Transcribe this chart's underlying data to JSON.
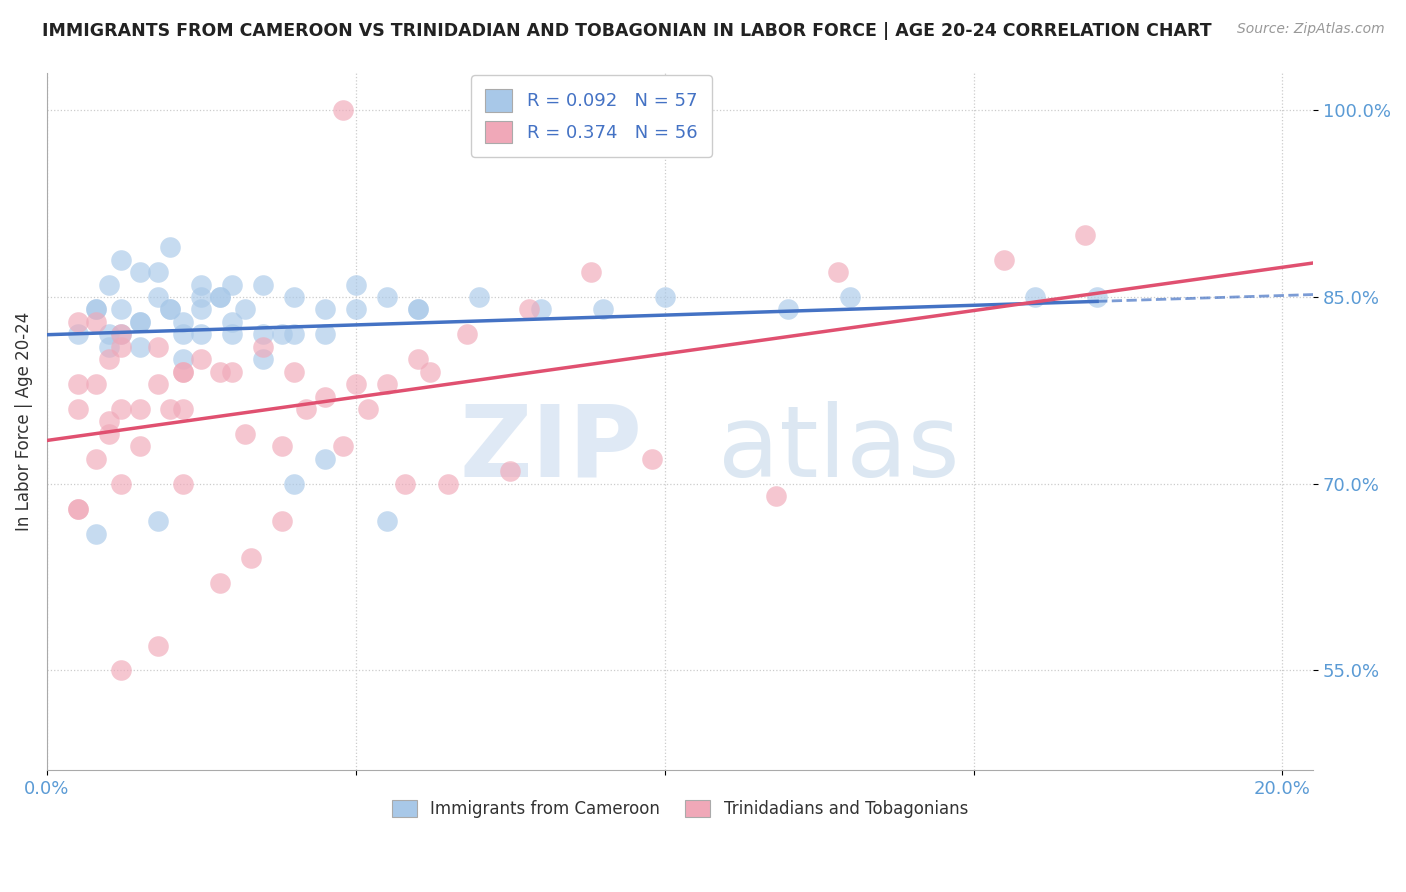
{
  "title": "IMMIGRANTS FROM CAMEROON VS TRINIDADIAN AND TOBAGONIAN IN LABOR FORCE | AGE 20-24 CORRELATION CHART",
  "source": "Source: ZipAtlas.com",
  "ylabel": "In Labor Force | Age 20-24",
  "xlim": [
    0.0,
    0.205
  ],
  "ylim": [
    0.47,
    1.03
  ],
  "xticks": [
    0.0,
    0.05,
    0.1,
    0.15,
    0.2
  ],
  "xticklabels": [
    "0.0%",
    "",
    "",
    "",
    "20.0%"
  ],
  "yticks": [
    0.55,
    0.7,
    0.85,
    1.0
  ],
  "yticklabels": [
    "55.0%",
    "70.0%",
    "85.0%",
    "100.0%"
  ],
  "blue_color": "#A8C8E8",
  "pink_color": "#F0A8B8",
  "blue_line_color": "#4472C4",
  "pink_line_color": "#E05070",
  "legend_blue_label": "R = 0.092   N = 57",
  "legend_pink_label": "R = 0.374   N = 56",
  "bottom_legend_blue": "Immigrants from Cameroon",
  "bottom_legend_pink": "Trinidadians and Tobagonians",
  "watermark_zip": "ZIP",
  "watermark_atlas": "atlas",
  "blue_scatter_x": [
    0.005,
    0.008,
    0.01,
    0.01,
    0.012,
    0.015,
    0.015,
    0.018,
    0.02,
    0.02,
    0.022,
    0.025,
    0.025,
    0.028,
    0.03,
    0.03,
    0.032,
    0.035,
    0.015,
    0.01,
    0.008,
    0.012,
    0.018,
    0.022,
    0.025,
    0.04,
    0.045,
    0.05,
    0.055,
    0.06,
    0.03,
    0.035,
    0.04,
    0.02,
    0.025,
    0.015,
    0.035,
    0.05,
    0.06,
    0.045,
    0.07,
    0.08,
    0.09,
    0.1,
    0.12,
    0.055,
    0.04,
    0.045,
    0.018,
    0.008,
    0.028,
    0.038,
    0.022,
    0.012,
    0.13,
    0.16,
    0.17
  ],
  "blue_scatter_y": [
    0.82,
    0.84,
    0.81,
    0.86,
    0.88,
    0.83,
    0.87,
    0.85,
    0.84,
    0.89,
    0.82,
    0.86,
    0.84,
    0.85,
    0.83,
    0.86,
    0.84,
    0.86,
    0.83,
    0.82,
    0.84,
    0.82,
    0.87,
    0.83,
    0.85,
    0.85,
    0.84,
    0.86,
    0.85,
    0.84,
    0.82,
    0.8,
    0.82,
    0.84,
    0.82,
    0.81,
    0.82,
    0.84,
    0.84,
    0.82,
    0.85,
    0.84,
    0.84,
    0.85,
    0.84,
    0.67,
    0.7,
    0.72,
    0.67,
    0.66,
    0.85,
    0.82,
    0.8,
    0.84,
    0.85,
    0.85,
    0.85
  ],
  "pink_scatter_x": [
    0.005,
    0.008,
    0.01,
    0.012,
    0.008,
    0.012,
    0.005,
    0.01,
    0.015,
    0.012,
    0.005,
    0.01,
    0.015,
    0.018,
    0.022,
    0.008,
    0.005,
    0.012,
    0.018,
    0.022,
    0.025,
    0.02,
    0.03,
    0.035,
    0.028,
    0.045,
    0.055,
    0.04,
    0.05,
    0.06,
    0.032,
    0.022,
    0.038,
    0.042,
    0.048,
    0.052,
    0.062,
    0.068,
    0.078,
    0.088,
    0.058,
    0.098,
    0.118,
    0.128,
    0.038,
    0.028,
    0.033,
    0.018,
    0.012,
    0.005,
    0.065,
    0.075,
    0.155,
    0.168,
    0.048,
    0.022
  ],
  "pink_scatter_y": [
    0.76,
    0.78,
    0.8,
    0.82,
    0.72,
    0.7,
    0.68,
    0.75,
    0.76,
    0.76,
    0.78,
    0.74,
    0.73,
    0.81,
    0.79,
    0.83,
    0.83,
    0.81,
    0.78,
    0.79,
    0.8,
    0.76,
    0.79,
    0.81,
    0.79,
    0.77,
    0.78,
    0.79,
    0.78,
    0.8,
    0.74,
    0.76,
    0.73,
    0.76,
    0.73,
    0.76,
    0.79,
    0.82,
    0.84,
    0.87,
    0.7,
    0.72,
    0.69,
    0.87,
    0.67,
    0.62,
    0.64,
    0.57,
    0.55,
    0.68,
    0.7,
    0.71,
    0.88,
    0.9,
    1.0,
    0.7
  ]
}
